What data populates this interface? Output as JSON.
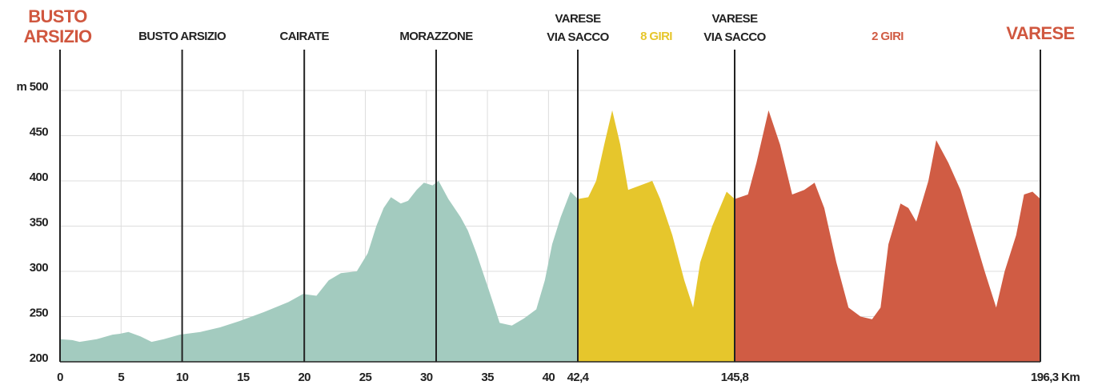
{
  "chart_data": {
    "type": "area",
    "ylim": [
      200,
      500
    ],
    "yticks": [
      200,
      250,
      300,
      350,
      400,
      450,
      {
        "value": 500,
        "label": "m 500"
      }
    ],
    "xticks": [
      0,
      5,
      10,
      15,
      20,
      25,
      30,
      35,
      40,
      {
        "value": 42.4,
        "label": "42,4"
      },
      {
        "value": 145.8,
        "label": "145,8"
      },
      {
        "value": 196.3,
        "label": "196,3 Km"
      }
    ],
    "grid": true,
    "places": [
      {
        "lines": [
          "BUSTO",
          "ARSIZIO"
        ],
        "km": 0,
        "color": "#d0573f"
      },
      {
        "lines": [
          "BUSTO ARSIZIO"
        ],
        "km": 10,
        "color": "#222222"
      },
      {
        "lines": [
          "CAIRATE"
        ],
        "km": 20,
        "color": "#222222"
      },
      {
        "lines": [
          "MORAZZONE"
        ],
        "km": 30.8,
        "color": "#222222"
      },
      {
        "lines": [
          "VARESE",
          "VIA SACCO"
        ],
        "km": 42.4,
        "color": "#222222"
      },
      {
        "lines": [
          "VARESE",
          "VIA SACCO"
        ],
        "km": 145.8,
        "color": "#222222"
      },
      {
        "lines": [
          "VARESE"
        ],
        "km": 196.3,
        "color": "#d0573f"
      }
    ],
    "series": [
      {
        "color": "#a3cbbf",
        "xlim": [
          0,
          42.4
        ],
        "x": [
          0,
          1,
          1.6,
          3,
          4.3,
          4.9,
          5.6,
          6.6,
          7.5,
          8.5,
          9.8,
          11.5,
          13.1,
          14.7,
          16.7,
          18.7,
          19.9,
          21,
          22,
          23,
          24.3,
          25.2,
          25.9,
          26.5,
          27.1,
          27.9,
          28.5,
          29.2,
          29.8,
          30.5,
          31,
          31.8,
          32.8,
          33.4,
          34.1,
          35.1,
          36,
          37,
          38,
          39,
          39.7,
          40.3,
          41,
          41.8,
          42.4
        ],
        "values": [
          225,
          224,
          222,
          225,
          230,
          231,
          233,
          228,
          222,
          225,
          230,
          233,
          238,
          245,
          255,
          266,
          275,
          273,
          290,
          298,
          300,
          320,
          350,
          370,
          382,
          375,
          378,
          390,
          398,
          395,
          400,
          380,
          360,
          345,
          320,
          280,
          243,
          240,
          248,
          258,
          290,
          330,
          360,
          388,
          380
        ]
      },
      {
        "name": "8 GIRI",
        "color": "#e6c62c",
        "xlim": [
          42.4,
          145.8
        ],
        "x": [
          42.4,
          49.3,
          54.5,
          59.8,
          65.1,
          70.4,
          75.6,
          83.6,
          91.5,
          96.7,
          104.7,
          112.6,
          118.4,
          123.1,
          131,
          140.5,
          145.8
        ],
        "values": [
          380,
          382,
          400,
          440,
          478,
          440,
          390,
          395,
          400,
          380,
          340,
          290,
          260,
          310,
          350,
          388,
          380
        ]
      },
      {
        "name": "2 GIRI",
        "color": "#d05c44",
        "xlim": [
          145.8,
          196.3
        ],
        "x": [
          145.8,
          148.0,
          149.4,
          151.4,
          153.3,
          155.3,
          157.3,
          159.0,
          160.6,
          162.6,
          164.6,
          166.6,
          168.5,
          169.9,
          171.2,
          173.2,
          174.5,
          175.8,
          177.8,
          179.1,
          181.1,
          183.1,
          185.1,
          187.1,
          189.0,
          190.4,
          192.3,
          193.6,
          195.0,
          196.3
        ],
        "values": [
          380,
          385,
          420,
          478,
          440,
          385,
          390,
          398,
          370,
          310,
          260,
          250,
          247,
          260,
          330,
          375,
          370,
          355,
          400,
          445,
          420,
          390,
          345,
          300,
          260,
          300,
          340,
          385,
          388,
          380
        ]
      }
    ]
  }
}
